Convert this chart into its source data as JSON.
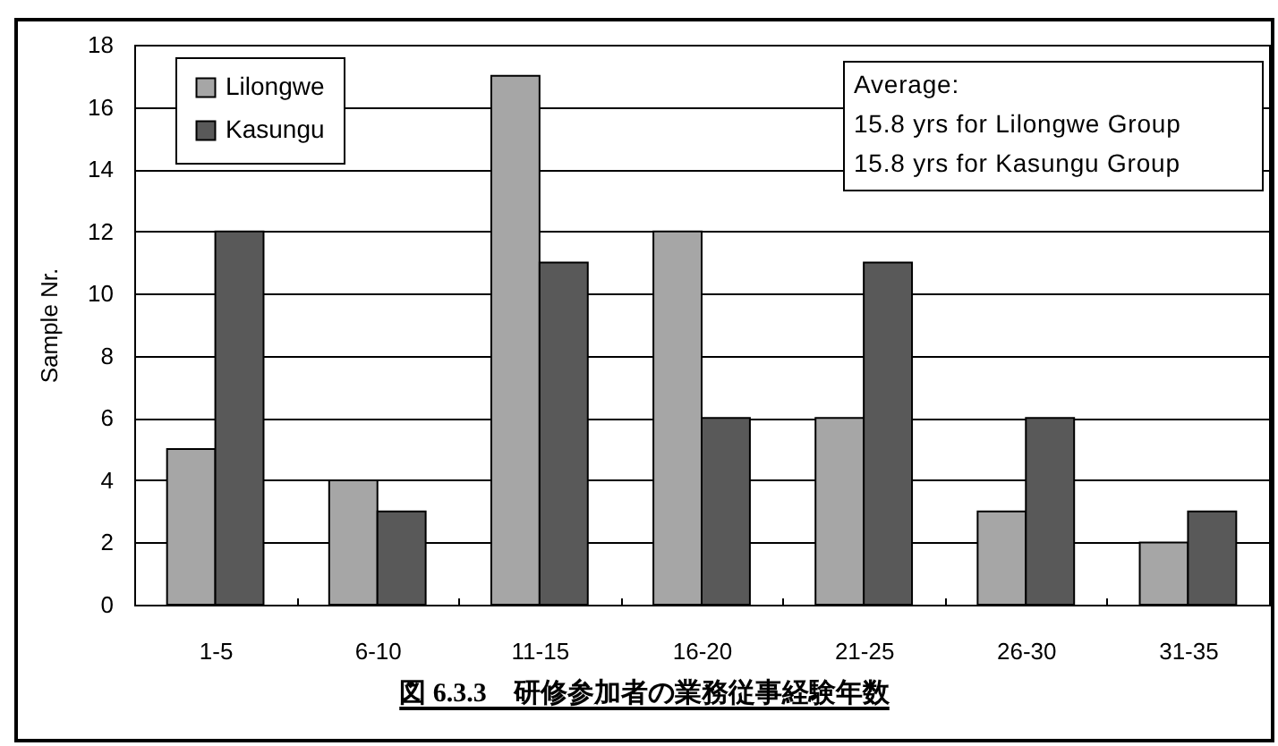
{
  "chart_data": {
    "type": "bar",
    "title": "図 6.3.3　研修参加者の業務従事経験年数",
    "ylabel": "Sample Nr.",
    "categories": [
      "1-5",
      "6-10",
      "11-15",
      "16-20",
      "21-25",
      "26-30",
      "31-35"
    ],
    "series": [
      {
        "name": "Lilongwe",
        "color": "#a6a6a6",
        "values": [
          5,
          4,
          17,
          12,
          6,
          3,
          2
        ]
      },
      {
        "name": "Kasungu",
        "color": "#595959",
        "values": [
          12,
          3,
          11,
          6,
          11,
          6,
          3
        ]
      }
    ],
    "ylim": [
      0,
      18
    ],
    "yticks": [
      0,
      2,
      4,
      6,
      8,
      10,
      12,
      14,
      16,
      18
    ],
    "grid": "y",
    "legend": "top left",
    "annotations": [
      "Average:",
      "15.8 yrs for Lilongwe Group",
      "15.8 yrs for Kasungu Group"
    ]
  }
}
